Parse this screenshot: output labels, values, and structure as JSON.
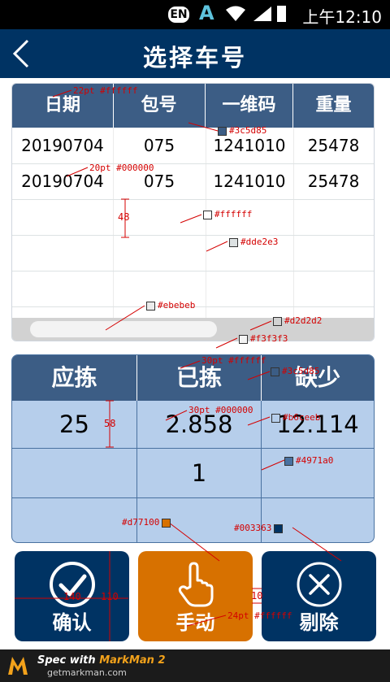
{
  "statusbar": {
    "ime": "EN",
    "a": "A",
    "time": "上午12:10"
  },
  "navbar": {
    "title": "选择车号"
  },
  "table1": {
    "headers": [
      "日期",
      "包号",
      "一维码",
      "重量"
    ],
    "rows": [
      [
        "20190704",
        "075",
        "1241010",
        "25478"
      ],
      [
        "20190704",
        "075",
        "1241010",
        "25478"
      ]
    ]
  },
  "table2": {
    "headers": [
      "应拣",
      "已拣",
      "缺少"
    ],
    "rows": [
      [
        "25",
        "2.858",
        "12.114"
      ],
      [
        "",
        "1",
        ""
      ],
      [
        "",
        "",
        ""
      ]
    ]
  },
  "buttons": {
    "confirm": "确认",
    "manual": "手动",
    "delete": "剔除"
  },
  "footer": {
    "brand_prefix": "Spec with ",
    "brand": "MarkMan 2",
    "site": "getmarkman.com"
  },
  "annotations": {
    "a1": "22pt #ffffff",
    "a2": "#3c5d85",
    "a3": "20pt #000000",
    "a4": "48",
    "a5": "#ffffff",
    "a6": "#dde2e3",
    "a7": "#ebebeb",
    "a8": "#d2d2d2",
    "a9": "#f3f3f3",
    "a10": "30pt #ffffff",
    "a11": "#3c5d85",
    "a12": "58",
    "a13": "30pt #000000",
    "a14": "#b6ceeb",
    "a15": "#4971a0",
    "a16": "#d77100",
    "a17": "#003363",
    "a18": "140",
    "a19": "110",
    "a20": "10",
    "a21": "24pt #ffffff"
  },
  "colors": {
    "navbar": "#003363",
    "table_header": "#3c5d85",
    "table2_body": "#b6ceeb",
    "table2_lines": "#4971a0",
    "manual_button": "#d77100"
  },
  "icons": {
    "back": "chevron-left-icon",
    "confirm": "check-circle-icon",
    "manual": "hand-pointer-icon",
    "delete": "x-circle-icon"
  }
}
